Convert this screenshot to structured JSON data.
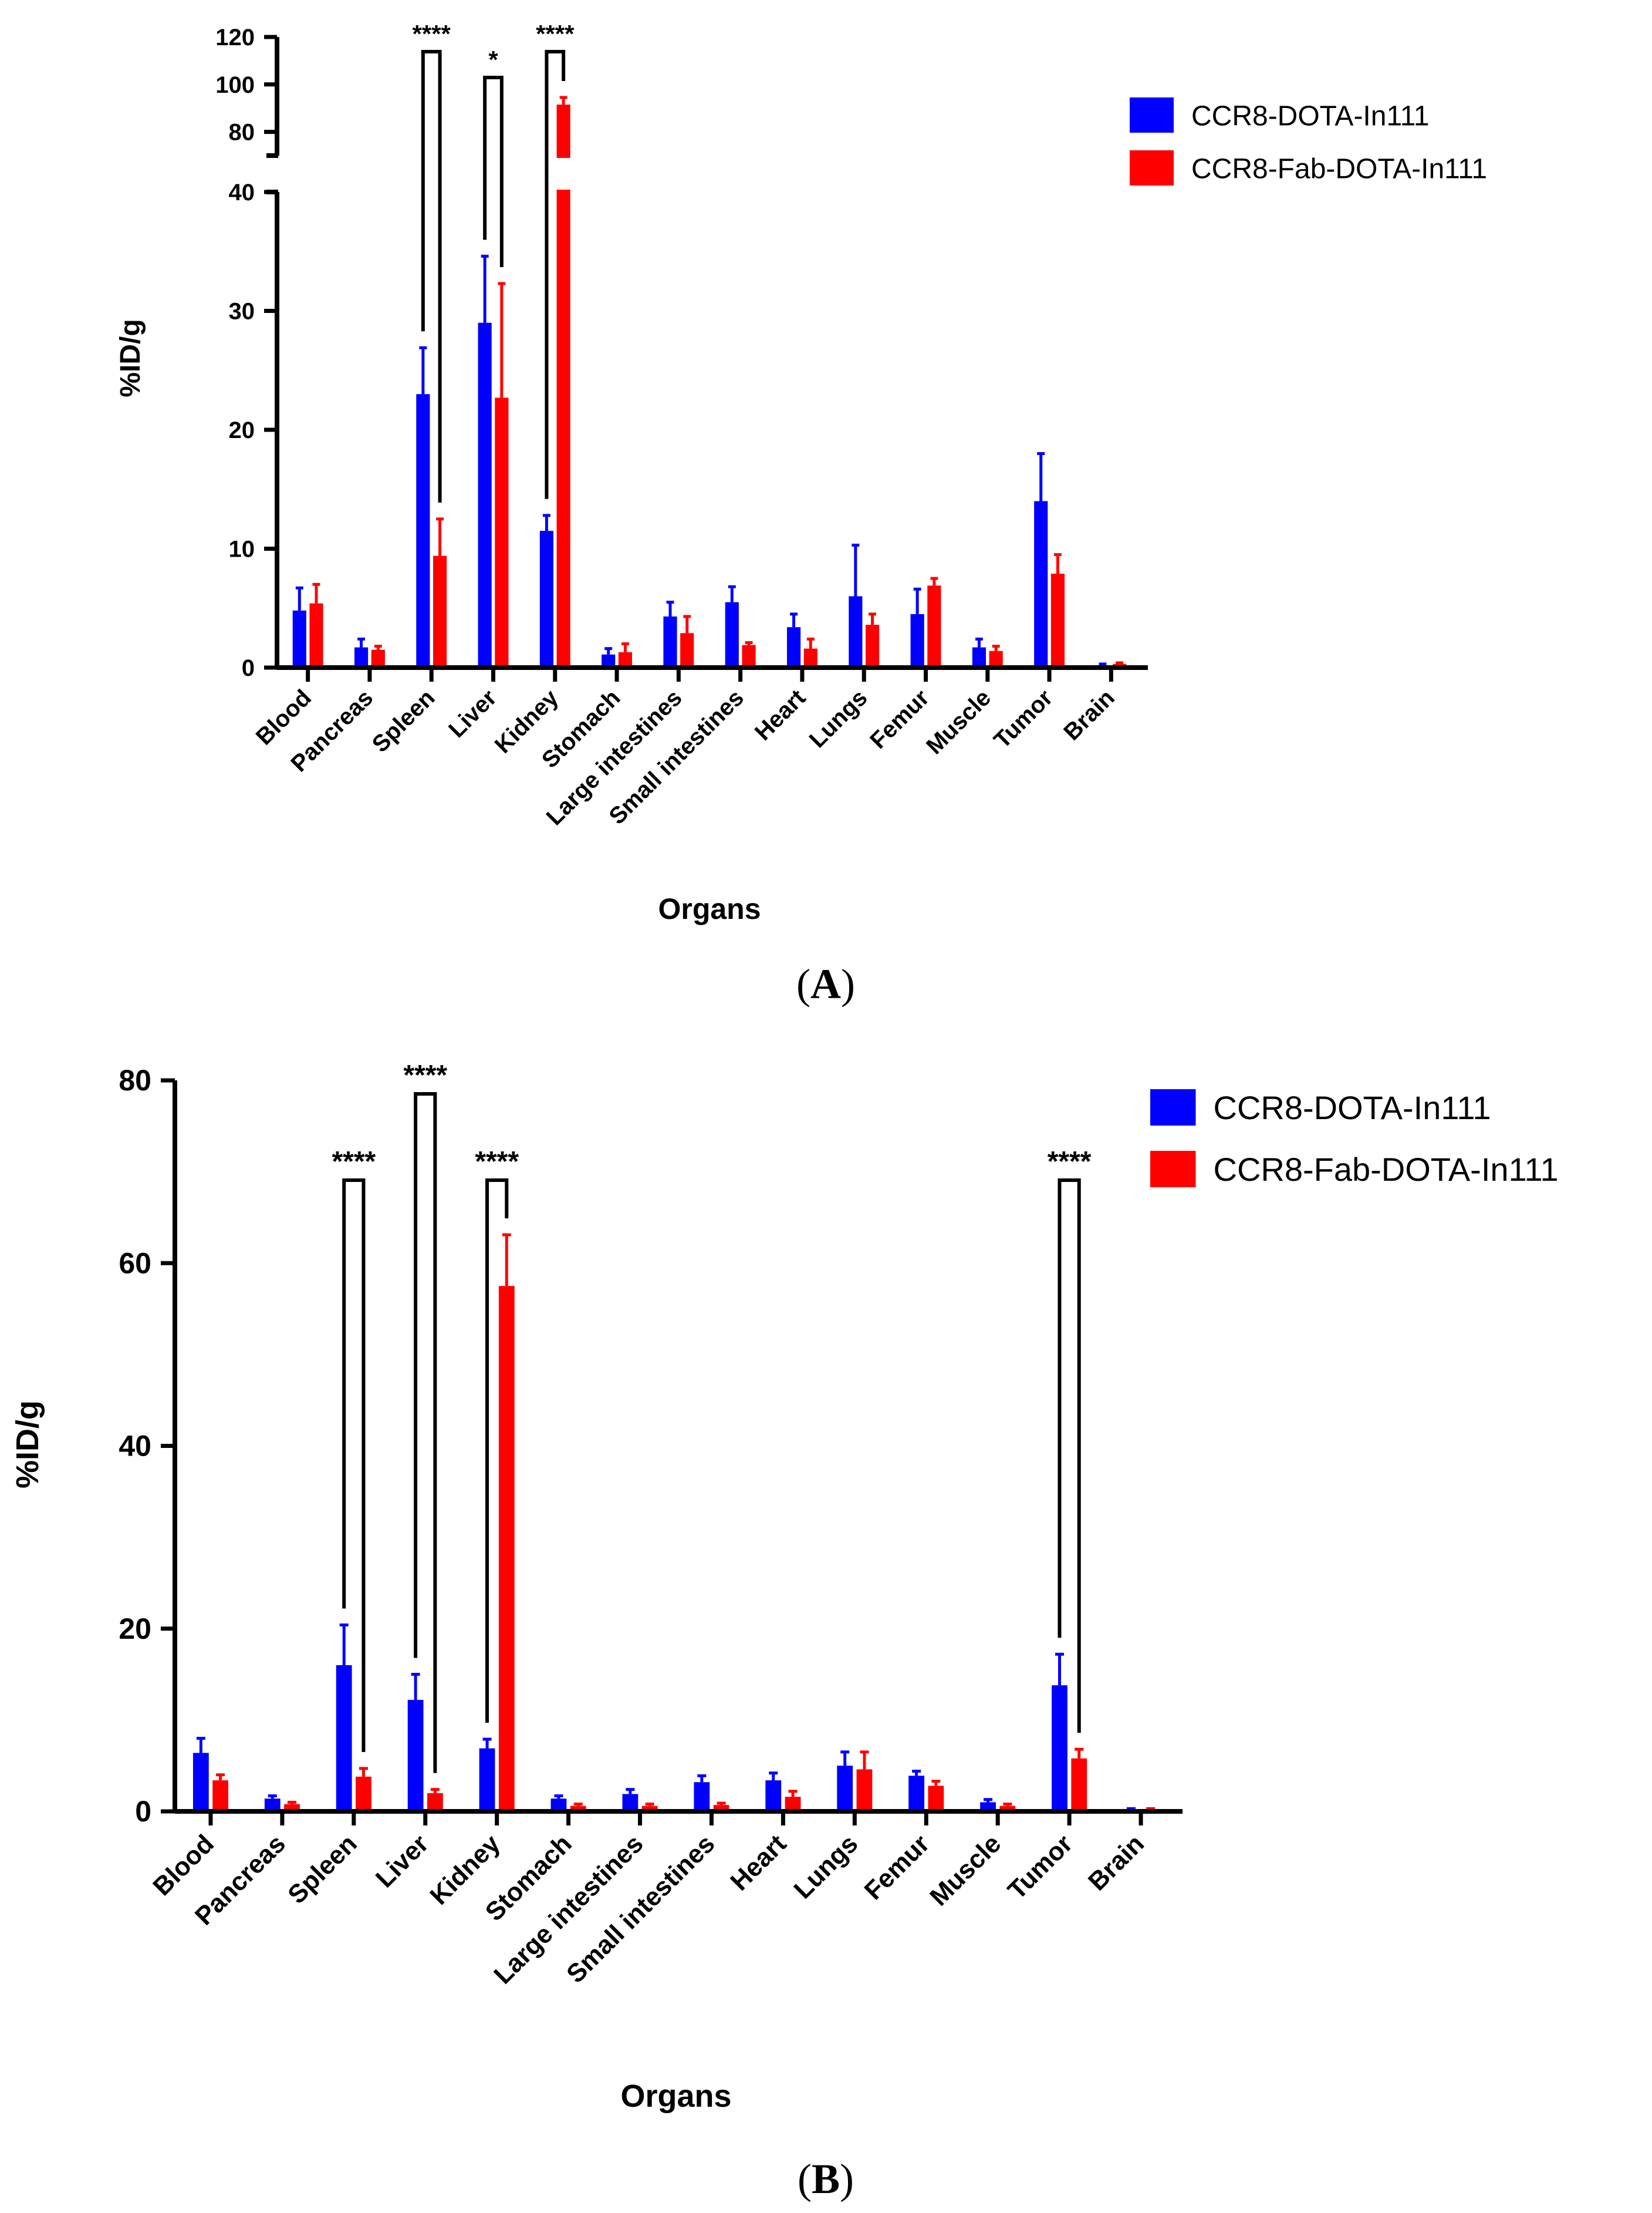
{
  "colors": {
    "series1": "#0000ff",
    "series2": "#ff0000",
    "axis": "#000000"
  },
  "chart_data": [
    {
      "type": "bar",
      "panel": "A",
      "xlabel": "Organs",
      "ylabel": "%ID/g",
      "categories": [
        "Blood",
        "Pancreas",
        "Spleen",
        "Liver",
        "Kidney",
        "Stomach",
        "Large intestines",
        "Small intestines",
        "Heart",
        "Lungs",
        "Femur",
        "Muscle",
        "Tumor",
        "Brain"
      ],
      "series": [
        {
          "name": "CCR8-DOTA-In111",
          "color": "#0000ff",
          "values": [
            4.8,
            1.7,
            23.0,
            29.0,
            11.5,
            1.1,
            4.3,
            5.5,
            3.4,
            6.0,
            4.5,
            1.7,
            14.0,
            0.2
          ],
          "errors": [
            1.9,
            0.7,
            3.9,
            5.6,
            1.3,
            0.5,
            1.2,
            1.3,
            1.1,
            4.3,
            2.1,
            0.7,
            4.0,
            0.1
          ]
        },
        {
          "name": "CCR8-Fab-DOTA-In111",
          "color": "#ff0000",
          "values": [
            5.4,
            1.5,
            9.4,
            22.7,
            91.5,
            1.3,
            2.9,
            1.9,
            1.6,
            3.6,
            6.9,
            1.4,
            7.9,
            0.3
          ],
          "errors": [
            1.6,
            0.3,
            3.1,
            9.6,
            3.0,
            0.7,
            1.4,
            0.2,
            0.8,
            0.9,
            0.6,
            0.4,
            1.6,
            0.1
          ]
        }
      ],
      "axis": {
        "ylim": [
          0,
          120
        ],
        "lower_segment": [
          0,
          40
        ],
        "upper_segment": [
          70,
          120
        ],
        "lower_ticks": [
          "0",
          "10",
          "20",
          "30",
          "40"
        ],
        "upper_ticks": [
          "80",
          "100",
          "120"
        ]
      },
      "significance": [
        {
          "category": "Spleen",
          "label": "****"
        },
        {
          "category": "Liver",
          "label": "*"
        },
        {
          "category": "Kidney",
          "label": "****"
        }
      ],
      "legend_position": "top-right"
    },
    {
      "type": "bar",
      "panel": "B",
      "xlabel": "Organs",
      "ylabel": "%ID/g",
      "categories": [
        "Blood",
        "Pancreas",
        "Spleen",
        "Liver",
        "Kidney",
        "Stomach",
        "Large intestines",
        "Small intestines",
        "Heart",
        "Lungs",
        "Femur",
        "Muscle",
        "Tumor",
        "Brain"
      ],
      "series": [
        {
          "name": "CCR8-DOTA-In111",
          "color": "#0000ff",
          "values": [
            6.4,
            1.4,
            16.0,
            12.2,
            6.9,
            1.4,
            1.9,
            3.2,
            3.4,
            5.0,
            3.9,
            1.0,
            13.8,
            0.2
          ],
          "errors": [
            1.6,
            0.3,
            4.4,
            2.8,
            1.0,
            0.3,
            0.5,
            0.7,
            0.8,
            1.5,
            0.5,
            0.3,
            3.4,
            0.1
          ]
        },
        {
          "name": "CCR8-Fab-DOTA-In111",
          "color": "#ff0000",
          "values": [
            3.4,
            0.8,
            3.8,
            2.0,
            57.5,
            0.6,
            0.6,
            0.7,
            1.6,
            4.6,
            2.8,
            0.6,
            5.8,
            0.2
          ],
          "errors": [
            0.6,
            0.2,
            0.9,
            0.4,
            5.6,
            0.2,
            0.2,
            0.2,
            0.6,
            1.9,
            0.5,
            0.2,
            1.0,
            0.1
          ]
        }
      ],
      "axis": {
        "ylim": [
          0,
          80
        ],
        "ticks": [
          "0",
          "20",
          "40",
          "60",
          "80"
        ]
      },
      "significance": [
        {
          "category": "Spleen",
          "label": "****"
        },
        {
          "category": "Liver",
          "label": "****"
        },
        {
          "category": "Kidney",
          "label": "****"
        },
        {
          "category": "Tumor",
          "label": "****"
        }
      ],
      "legend_position": "top-right"
    }
  ],
  "panel_labels": [
    {
      "open": "(",
      "letter": "A",
      "close": ")"
    },
    {
      "open": "(",
      "letter": "B",
      "close": ")"
    }
  ]
}
